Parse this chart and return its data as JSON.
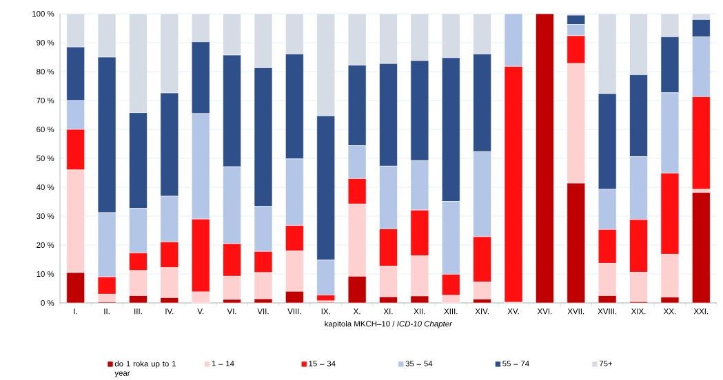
{
  "chart_data": {
    "type": "bar",
    "stacked": true,
    "xlabel": "kapitola MKCH–10 / *ICD-10 Chapter*",
    "categories": [
      "I.",
      "II.",
      "III.",
      "IV.",
      "V.",
      "VI.",
      "VII.",
      "VIII.",
      "IX.",
      "X.",
      "XI.",
      "XII.",
      "XIII.",
      "XIV.",
      "XV.",
      "XVI.",
      "XVII.",
      "XVIII.",
      "XIX.",
      "XX.",
      "XXI."
    ],
    "series": [
      {
        "name": "do 1 roka up to 1 year",
        "color": "#c00000",
        "values": [
          10.5,
          0.3,
          2.5,
          1.8,
          0,
          1.2,
          1.4,
          4,
          0.2,
          9.2,
          2.1,
          2.4,
          0,
          1.3,
          0,
          100,
          41.4,
          2.5,
          0.4,
          2,
          38.2
        ]
      },
      {
        "name": "1 – 14",
        "color": "#ffd0d0",
        "values": [
          35.5,
          2.7,
          8.7,
          10.4,
          3.8,
          8,
          9.1,
          14,
          0.5,
          25,
          10.6,
          13.9,
          2.6,
          5.9,
          0.2,
          0,
          41.4,
          11.2,
          10.2,
          14.8,
          1.1
        ]
      },
      {
        "name": "15 – 34",
        "color": "#ff0f0f",
        "values": [
          14,
          6,
          6.1,
          8.9,
          25.2,
          11.3,
          7.3,
          8.8,
          2,
          8.8,
          12.9,
          15.8,
          7.3,
          15.7,
          81.6,
          0,
          9.6,
          11.7,
          18.2,
          28.1,
          32
        ]
      },
      {
        "name": "35 – 54",
        "color": "#b4c6e7",
        "values": [
          10,
          22.2,
          15.4,
          15.8,
          36.5,
          26.6,
          15.6,
          23,
          12.1,
          11.4,
          21.7,
          17.1,
          25.2,
          29.4,
          18.2,
          0,
          3.9,
          13.9,
          21.8,
          27.8,
          20.7
        ]
      },
      {
        "name": "55 – 74",
        "color": "#2e4f8a",
        "values": [
          18.5,
          53.8,
          33.1,
          35.7,
          24.8,
          38.6,
          47.9,
          36.3,
          49.9,
          27.8,
          35.5,
          34.6,
          49.7,
          33.8,
          0,
          0,
          3.2,
          33.1,
          28.3,
          19.3,
          6
        ]
      },
      {
        "name": "75+",
        "color": "#d6dce5",
        "values": [
          11.5,
          15,
          34.2,
          27.4,
          9.7,
          14.3,
          18.7,
          13.9,
          35.3,
          17.8,
          17.2,
          16.2,
          15.2,
          13.9,
          0,
          0,
          0.5,
          27.6,
          21.1,
          8,
          2
        ]
      }
    ],
    "ylim": [
      0,
      100
    ],
    "yticks": [
      {
        "value": 0,
        "label": "0 %"
      },
      {
        "value": 10,
        "label": "10 %"
      },
      {
        "value": 20,
        "label": "20 %"
      },
      {
        "value": 30,
        "label": "30 %"
      },
      {
        "value": 40,
        "label": "40 %"
      },
      {
        "value": 50,
        "label": "50 %"
      },
      {
        "value": 60,
        "label": "60 %"
      },
      {
        "value": 70,
        "label": "70 %"
      },
      {
        "value": 80,
        "label": "80 %"
      },
      {
        "value": 90,
        "label": "90 %"
      },
      {
        "value": 100,
        "label": "100 %"
      }
    ],
    "grid": "y",
    "legend": "bottom"
  }
}
